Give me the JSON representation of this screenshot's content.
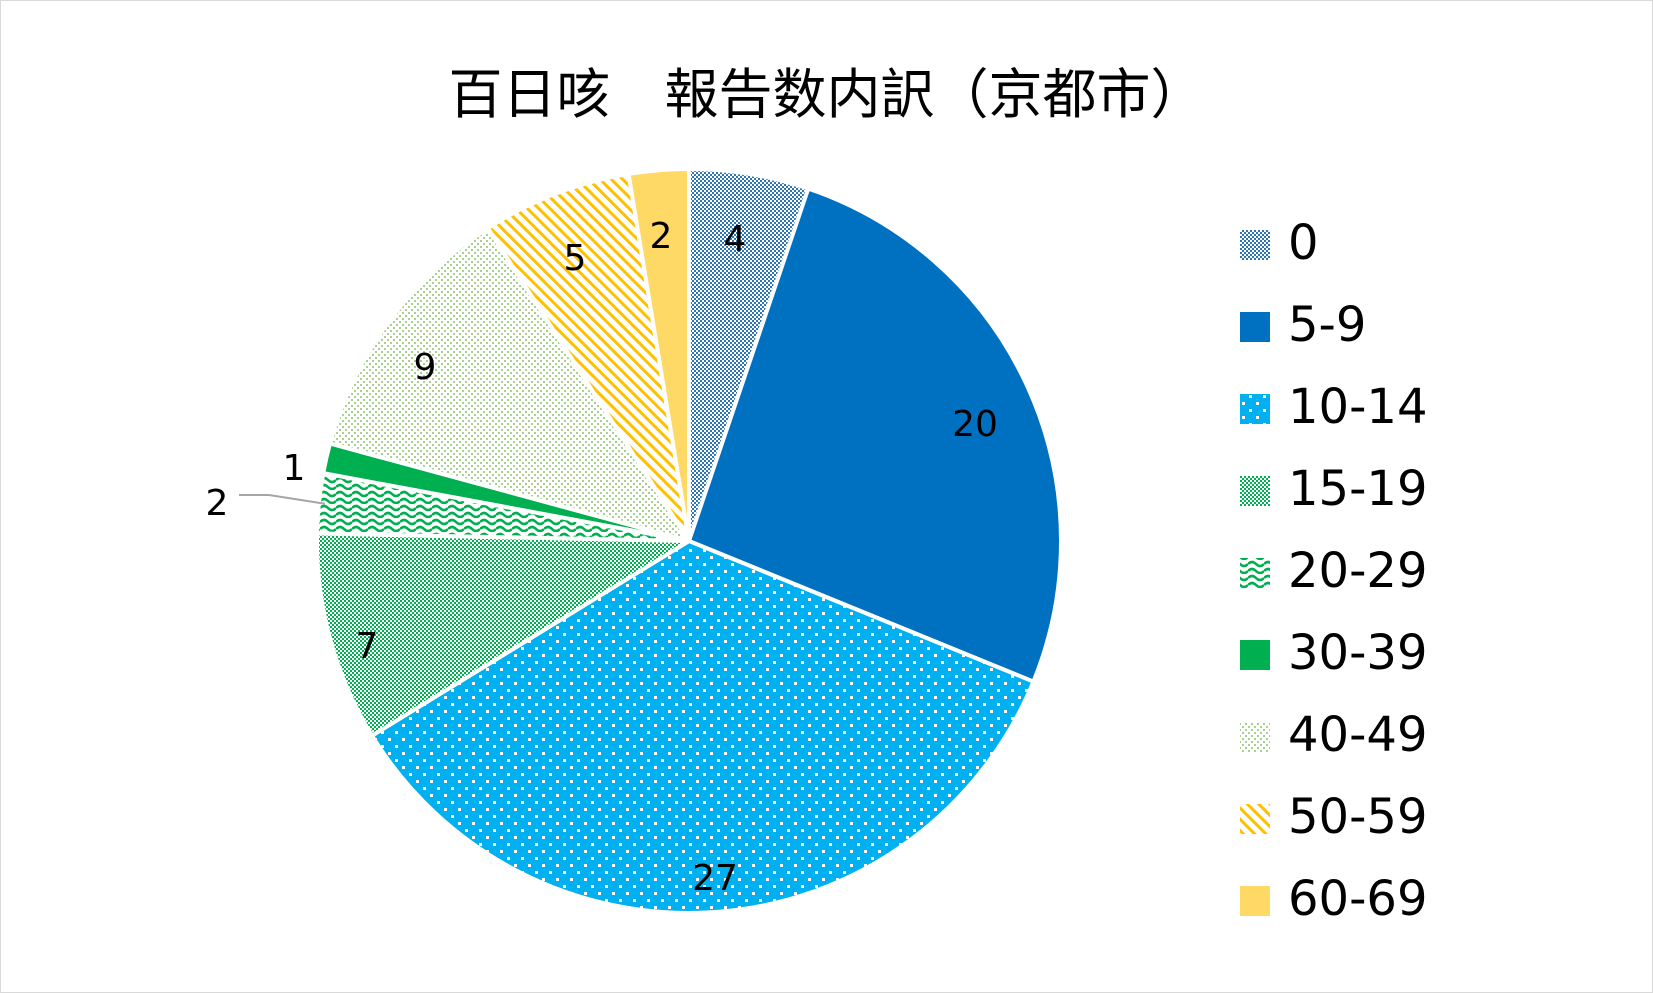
{
  "chart_data": {
    "type": "pie",
    "title": "百日咳　報告数内訳（京都市）",
    "categories": [
      "0",
      "5-9",
      "10-14",
      "15-19",
      "20-29",
      "30-39",
      "40-49",
      "50-59",
      "60-69"
    ],
    "values": [
      4,
      20,
      27,
      7,
      2,
      1,
      9,
      5,
      2
    ],
    "colors": [
      "#2e75b6",
      "#0070c0",
      "#00b0f0",
      "#00b050",
      "#00b050",
      "#00b050",
      "#a9d18e",
      "#ffc000",
      "#ffd966"
    ],
    "patterns": [
      "checker",
      "solid",
      "dots",
      "checker",
      "wave",
      "solid",
      "dots",
      "diagonal",
      "solid"
    ],
    "legend_position": "right",
    "data_labels": true
  }
}
